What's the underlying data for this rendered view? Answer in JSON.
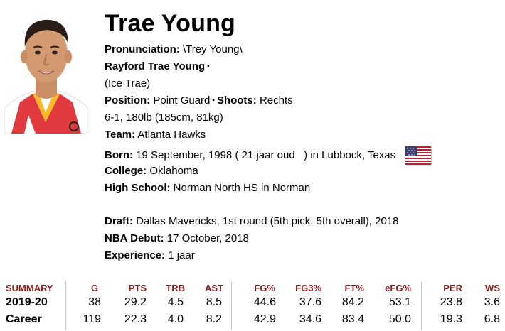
{
  "player": {
    "name": "Trae Young",
    "pronunciation_label": "Pronunciation:",
    "pronunciation": " \\Trey Young\\",
    "full_name": "Rayford Trae Young",
    "nickname": "(Ice Trae)",
    "position_label": "Position:",
    "position": "Point Guard",
    "shoots_label": "Shoots:",
    "shoots": "Rechts",
    "size": "6-1, 180lb (185cm, 81kg)",
    "team_label": "Team:",
    "team": "Atlanta Hawks",
    "born_label": "Born:",
    "born_date": "19 September, 1998",
    "born_age": "( 21 jaar oud   )",
    "born_place": "in Lubbock, Texas",
    "college_label": "College:",
    "college": "Oklahoma",
    "highschool_label": "High School:",
    "highschool": "Norman North HS in Norman",
    "draft_label": "Draft:",
    "draft": "Dallas Mavericks,  1st round (5th pick, 5th overall), 2018",
    "debut_label": "NBA Debut:",
    "debut": "17 October, 2018",
    "experience_label": "Experience:",
    "experience": "1 jaar"
  },
  "colors": {
    "header_red": "#8b1a1a",
    "divider": "#c8c8c8"
  },
  "stats": {
    "headers": [
      "SUMMARY",
      "G",
      "PTS",
      "TRB",
      "AST",
      "FG%",
      "FG3%",
      "FT%",
      "eFG%",
      "PER",
      "WS"
    ],
    "rows": [
      [
        "2019-20",
        "38",
        "29.2",
        "4.5",
        "8.5",
        "44.6",
        "37.6",
        "84.2",
        "53.1",
        "23.8",
        "3.6"
      ],
      [
        "Career",
        "119",
        "22.3",
        "4.0",
        "8.2",
        "42.9",
        "34.6",
        "83.4",
        "50.0",
        "19.3",
        "6.8"
      ]
    ]
  }
}
